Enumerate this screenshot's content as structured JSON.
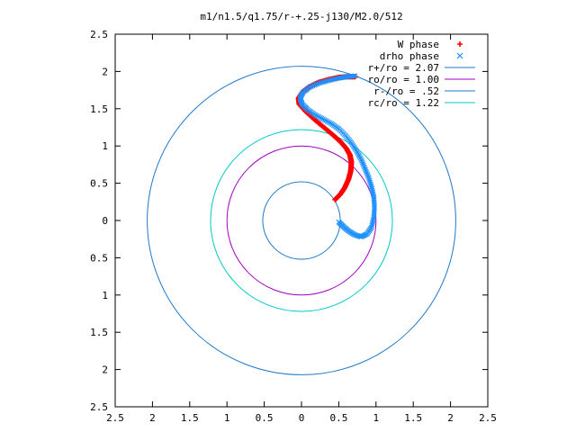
{
  "chart_data": {
    "type": "scatter",
    "title": "m1/n1.5/q1.75/r-+.25-j130/M2.0/512",
    "xlim": [
      -2.5,
      2.5
    ],
    "ylim": [
      -2.5,
      2.5
    ],
    "xticks": [
      -2.5,
      -2,
      -1.5,
      -1,
      -0.5,
      0,
      0.5,
      1,
      1.5,
      2,
      2.5
    ],
    "yticks": [
      -2.5,
      -2,
      -1.5,
      -1,
      -0.5,
      0,
      0.5,
      1,
      1.5,
      2,
      2.5
    ],
    "xtick_labels": [
      "2.5",
      "2",
      "1.5",
      "1",
      "0.5",
      "0",
      "0.5",
      "1",
      "1.5",
      "2",
      "2.5"
    ],
    "ytick_labels": [
      "2.5",
      "2",
      "1.5",
      "1",
      "0.5",
      "0",
      "0.5",
      "1",
      "1.5",
      "2",
      "2.5"
    ],
    "legend_position": "top-right",
    "grid": false,
    "series": [
      {
        "name": "W phase",
        "kind": "points",
        "marker": "plus",
        "color": "#ff0000",
        "x": [
          0.45,
          0.52,
          0.58,
          0.63,
          0.66,
          0.67,
          0.65,
          0.6,
          0.52,
          0.42,
          0.3,
          0.18,
          0.06,
          -0.03,
          -0.04,
          0.01,
          0.1,
          0.22,
          0.36,
          0.5,
          0.62,
          0.72
        ],
        "y": [
          0.28,
          0.35,
          0.44,
          0.55,
          0.66,
          0.78,
          0.88,
          0.97,
          1.06,
          1.15,
          1.25,
          1.35,
          1.46,
          1.56,
          1.64,
          1.72,
          1.79,
          1.85,
          1.89,
          1.92,
          1.93,
          1.93
        ]
      },
      {
        "name": "drho phase",
        "kind": "points",
        "marker": "x",
        "color": "#1e90ff",
        "x": [
          0.5,
          0.56,
          0.63,
          0.71,
          0.8,
          0.88,
          0.94,
          0.97,
          0.98,
          0.97,
          0.94,
          0.9,
          0.85,
          0.8,
          0.74,
          0.67,
          0.59,
          0.5,
          0.4,
          0.29,
          0.18,
          0.08,
          0.01,
          -0.02,
          0.02,
          0.11,
          0.23,
          0.37,
          0.5,
          0.62,
          0.72
        ],
        "y": [
          -0.02,
          -0.08,
          -0.14,
          -0.19,
          -0.22,
          -0.18,
          -0.09,
          0.04,
          0.18,
          0.32,
          0.45,
          0.58,
          0.7,
          0.82,
          0.93,
          1.04,
          1.14,
          1.23,
          1.3,
          1.36,
          1.42,
          1.49,
          1.56,
          1.64,
          1.72,
          1.79,
          1.84,
          1.88,
          1.91,
          1.93,
          1.94
        ]
      },
      {
        "name": "r+/ro = 2.07",
        "kind": "circle",
        "radius": 2.07,
        "color": "#1f78c8"
      },
      {
        "name": "ro/ro = 1.00",
        "kind": "circle",
        "radius": 1.0,
        "color": "#a000c0"
      },
      {
        "name": "r-/ro = .52",
        "kind": "circle",
        "radius": 0.52,
        "color": "#1f78c8"
      },
      {
        "name": "rc/ro = 1.22",
        "kind": "circle",
        "radius": 1.22,
        "color": "#00c8c8"
      }
    ]
  }
}
